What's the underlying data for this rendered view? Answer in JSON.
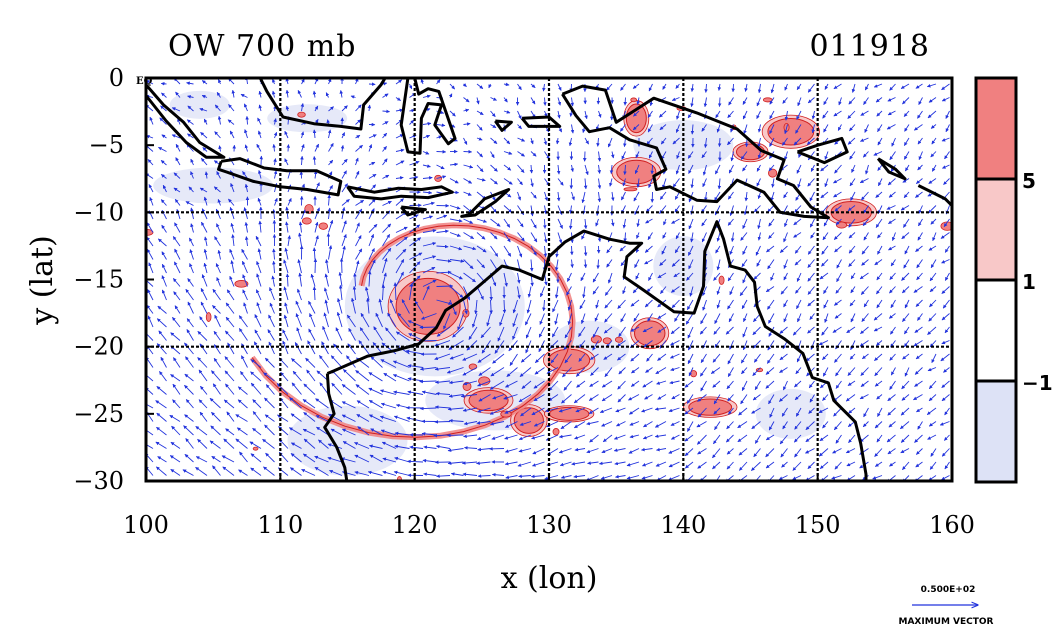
{
  "title_left": "OW 700 mb",
  "title_right": "011918",
  "x_axis": {
    "label": "x (lon)",
    "ticks": [
      100,
      110,
      120,
      130,
      140,
      150,
      160
    ],
    "range": [
      100,
      160
    ]
  },
  "y_axis": {
    "label": "y (lat)",
    "ticks": [
      0,
      -5,
      -10,
      -15,
      -20,
      -25,
      -30
    ],
    "tick_labels": [
      "0",
      "−5",
      "−10",
      "−15",
      "−20",
      "−25",
      "−30"
    ],
    "range": [
      -30,
      0
    ]
  },
  "eq_label": "EQ",
  "grid_lon": [
    110,
    120,
    130,
    140,
    150
  ],
  "grid_lat": [
    -10,
    -20
  ],
  "colorbar": {
    "labels": [
      "5",
      "1",
      "−1"
    ],
    "colors": [
      "#f08080",
      "#f8c8c8",
      "#ffffff",
      "#dde2f6"
    ]
  },
  "reference_vector": {
    "value_label": "0.500E+02",
    "caption": "MAXIMUM VECTOR"
  },
  "colors": {
    "vectors": "#2233dd",
    "positive_fill": "#f08080",
    "positive_line": "#d02020",
    "negative_fill": "#dde2f6",
    "coast": "#000000"
  },
  "field": {
    "cyclone_center": [
      121.5,
      -17.0
    ],
    "strong_positive_patches": [
      [
        121.0,
        -17.0
      ],
      [
        136.5,
        -3.0
      ],
      [
        145.0,
        -5.5
      ],
      [
        152.5,
        -10.0
      ],
      [
        128.5,
        -25.5
      ],
      [
        131.5,
        -21.0
      ],
      [
        136.5,
        -7.0
      ],
      [
        142.0,
        -24.5
      ],
      [
        137.5,
        -19.0
      ],
      [
        131.5,
        -25.0
      ],
      [
        125.5,
        -24.0
      ],
      [
        148.0,
        -4.0
      ]
    ]
  }
}
